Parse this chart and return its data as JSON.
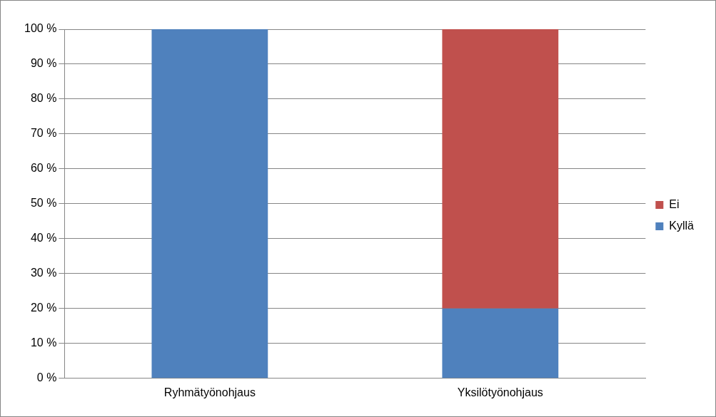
{
  "chart_data": {
    "type": "bar",
    "stacked": true,
    "categories": [
      "Ryhmätyönohjaus",
      "Yksilötyönohjaus"
    ],
    "series": [
      {
        "name": "Kyllä",
        "color": "#4f81bd",
        "values": [
          100,
          20
        ]
      },
      {
        "name": "Ei",
        "color": "#c0504d",
        "values": [
          0,
          80
        ]
      }
    ],
    "ylim": [
      0,
      100
    ],
    "yticks": [
      {
        "value": 0,
        "label": "0 %"
      },
      {
        "value": 10,
        "label": "10 %"
      },
      {
        "value": 20,
        "label": "20 %"
      },
      {
        "value": 30,
        "label": "30 %"
      },
      {
        "value": 40,
        "label": "40 %"
      },
      {
        "value": 50,
        "label": "50 %"
      },
      {
        "value": 60,
        "label": "60 %"
      },
      {
        "value": 70,
        "label": "70 %"
      },
      {
        "value": 80,
        "label": "80 %"
      },
      {
        "value": 90,
        "label": "90 %"
      },
      {
        "value": 100,
        "label": "100 %"
      }
    ],
    "grid": "y",
    "legend": "right"
  }
}
